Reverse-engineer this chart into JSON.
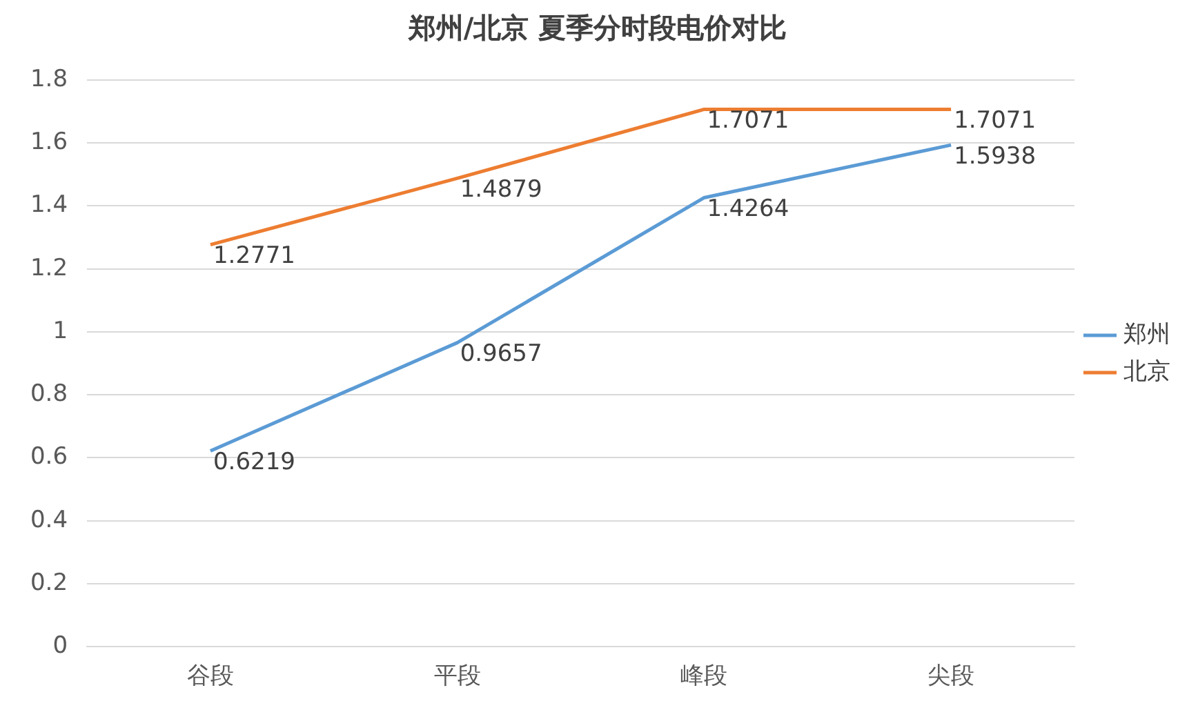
{
  "chart_data": {
    "type": "line",
    "title": "郑州/北京 夏季分时段电价对比",
    "categories": [
      "谷段",
      "平段",
      "峰段",
      "尖段"
    ],
    "series": [
      {
        "name": "郑州",
        "color": "#5b9bd5",
        "values": [
          0.6219,
          0.9657,
          1.4264,
          1.5938
        ]
      },
      {
        "name": "北京",
        "color": "#ed7d31",
        "values": [
          1.2771,
          1.4879,
          1.7071,
          1.7071
        ]
      }
    ],
    "ylim": [
      0,
      1.8
    ],
    "yticks": [
      0,
      0.2,
      0.4,
      0.6,
      0.8,
      1,
      1.2,
      1.4,
      1.6,
      1.8
    ],
    "grid": "y",
    "legend": "right",
    "data_labels": true,
    "marker": "none",
    "line_style": "solid"
  }
}
